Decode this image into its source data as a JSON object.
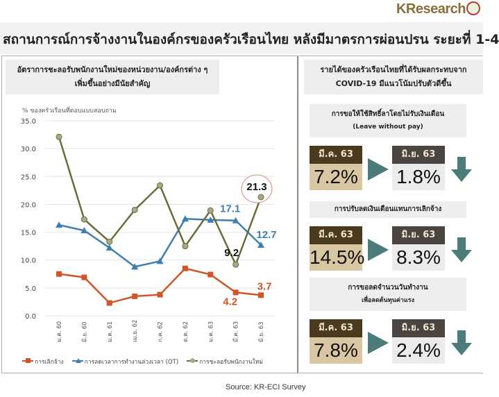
{
  "brand": "KResearch",
  "title": "สถานการณ์การจ้างงานในองค์กรของครัวเรือนไทย หลังมีมาตรการผ่อนปรน ระยะที่ 1-4",
  "left_panel": {
    "heading_line1": "อัตราการชะลอรับพนักงานใหม่ของหน่วยงาน/องค์กรต่าง ๆ",
    "heading_line2": "เพิ่มขึ้นอย่างมีนัยสำคัญ"
  },
  "right_panel": {
    "heading_line1": "รายได้ของครัวเรือนไทยที่ได้รับผลกระทบจาก",
    "heading_line2": "COVID-19 มีแนวโน้มปรับตัวดีขึ้น",
    "cards": [
      {
        "title_line1": "การขอให้ใช้สิทธิ์ลาโดยไม่รับเงินเดือน",
        "title_line2": "(Leave without pay)",
        "from_label": "มี.ค. 63",
        "from_value": "7.2%",
        "to_label": "มิ.ย. 63",
        "to_value": "1.8%",
        "trend": "down"
      },
      {
        "title_line1": "การปรับลดเงินเดือนแทนการเลิกจ้าง",
        "title_line2": "",
        "from_label": "มี.ค. 63",
        "from_value": "14.5%",
        "to_label": "มิ.ย. 63",
        "to_value": "8.3%",
        "trend": "down"
      },
      {
        "title_line1": "การขอลดจำนวนวันทำงาน",
        "title_line2": "เพื่อลดต้นทุนค่าแรง",
        "from_label": "มี.ค. 63",
        "from_value": "7.8%",
        "to_label": "มิ.ย. 63",
        "to_value": "2.4%",
        "trend": "down"
      }
    ]
  },
  "source": "Source: KR-ECI Survey",
  "colors": {
    "layoff": "#d0562a",
    "ot": "#3d7fb0",
    "hiring": "#6b6b3a",
    "from_label_bg": "#4a3a1e",
    "from_value_bg": "#d9c7a3",
    "to_label_bg": "#4a4540",
    "to_value_bg": "#ebebeb",
    "arrow": "#4b7b7b",
    "highlight_circle": "#e0867a"
  },
  "chart_data": {
    "type": "line",
    "ylabel": "% ของครัวเรือนที่ตอบแบบสอบถาม",
    "ylim": [
      0,
      35
    ],
    "yticks": [
      "0.0",
      "5.0",
      "10.0",
      "15.0",
      "20.0",
      "25.0",
      "30.0",
      "35.0"
    ],
    "grid": "horizontal",
    "legend_position": "bottom",
    "categories": [
      "ม.ค. 60",
      "มิ.ย. 60",
      "ม.ค. 61",
      "เม.ย. 62",
      "ก.ค. 62",
      "ต.ค. 62",
      "ม.ค. 63",
      "มี.ค. 63",
      "มิ.ย. 63"
    ],
    "series": [
      {
        "name": "การเลิกจ้าง",
        "color": "#d0562a",
        "marker": "square",
        "values": [
          7.5,
          6.9,
          2.3,
          3.5,
          3.8,
          8.5,
          7.4,
          4.2,
          3.7
        ]
      },
      {
        "name": "การลดเวลาการทำงานล่วงเวลา (OT)",
        "color": "#3d7fb0",
        "marker": "triangle",
        "values": [
          16.3,
          15.3,
          12.2,
          8.8,
          9.8,
          17.4,
          17.2,
          17.1,
          12.7
        ]
      },
      {
        "name": "การชะลอรับพนักงานใหม่",
        "color": "#6b6b3a",
        "marker": "circle",
        "values": [
          32.1,
          17.3,
          13.3,
          19.0,
          23.4,
          12.5,
          18.9,
          9.2,
          21.3
        ]
      }
    ],
    "data_labels": [
      {
        "series": 0,
        "index": 7,
        "text": "4.2"
      },
      {
        "series": 0,
        "index": 8,
        "text": "3.7"
      },
      {
        "series": 1,
        "index": 7,
        "text": "17.1"
      },
      {
        "series": 1,
        "index": 8,
        "text": "12.7"
      },
      {
        "series": 2,
        "index": 7,
        "text": "9.2"
      },
      {
        "series": 2,
        "index": 8,
        "text": "21.3"
      }
    ]
  }
}
